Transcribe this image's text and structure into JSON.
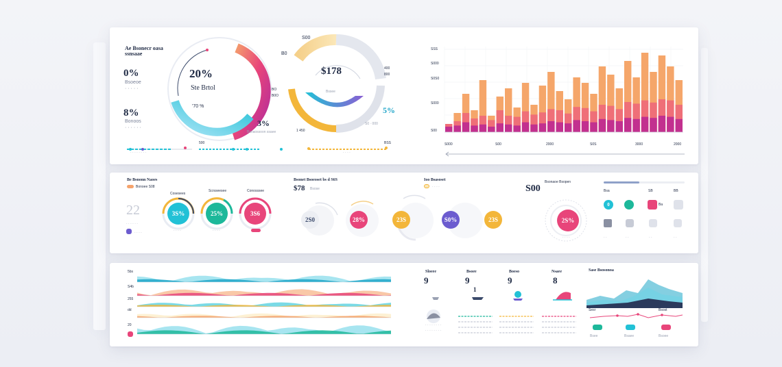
{
  "panel1": {
    "heading_line1": "Ae Bsonecr oasa",
    "heading_line2": "ssnsaae",
    "stat1_value": "0%",
    "stat1_caption": "Bsoeoe",
    "stat2_value": "8%",
    "stat2_caption": "Bonoos",
    "donut1_center_value": "20%",
    "donut1_center_label": "Ste Brtol",
    "donut1_sub": "'70 %",
    "donut1_callout_value": "3%",
    "donut1_callout_label": "Bsnaossoon ssaee",
    "donut2_top_label": "S00",
    "donut2_center_value": "$178",
    "donut2_center_label": "Bssee",
    "donut2_left_label": "B0",
    "donut2_side_right_1": "400",
    "donut2_side_right_2": "800",
    "donut2_side_left_1": "BO",
    "donut2_side_left_2": "B0O",
    "donut2_pct": "5%",
    "donut2_bottom": "1 450",
    "slider_value": "500",
    "slider2_value": "BSS",
    "bar_y_labels": [
      "SSS",
      "S000",
      "S0S0",
      "S000",
      "S00"
    ],
    "bar_x_labels": [
      "S000",
      "S00",
      "2000",
      "S0S",
      "3000",
      "2000"
    ],
    "bar_values_base": [
      10,
      12,
      18,
      12,
      14,
      10,
      16,
      14,
      12,
      18,
      14,
      16,
      20,
      18,
      16,
      22,
      20,
      18,
      24,
      22,
      20,
      26,
      24,
      28,
      26,
      30,
      28,
      24
    ],
    "bar_values_mid": [
      15,
      20,
      35,
      25,
      30,
      22,
      40,
      30,
      28,
      38,
      32,
      36,
      42,
      40,
      34,
      46,
      44,
      38,
      50,
      48,
      42,
      55,
      52,
      58,
      54,
      60,
      58,
      50
    ],
    "bar_values_top": [
      15,
      35,
      70,
      40,
      95,
      30,
      65,
      80,
      45,
      90,
      50,
      85,
      110,
      75,
      60,
      100,
      90,
      70,
      120,
      105,
      80,
      130,
      100,
      145,
      110,
      140,
      120,
      95
    ]
  },
  "panel2": {
    "heading": "Be Bsnonn Naoes",
    "subheading": "Bonoee S08",
    "big_number": "22",
    "gauge_labels": [
      "Cosesees",
      "Scrsseesee",
      "Conosssee"
    ],
    "gauge_values": [
      "3S%",
      "25%",
      "3S6"
    ],
    "mid_heading": "Bsonet Bsoeoset bs d S6S",
    "mid_value": "$78",
    "mid_value_sub": "Bsose",
    "mid_circle_values": [
      "2S0",
      "28%",
      "23S",
      "S0%",
      "23S"
    ],
    "right_heading": "Ioo Bsasoset",
    "right_value": "S00",
    "right_value_label": "Bsonaoe Bsopen",
    "right_circle_value": "2S%",
    "accent_colors": [
      "#22c1d6",
      "#1db89a",
      "#e8457a",
      "#f3b63a",
      "#6c5ccf"
    ]
  },
  "panel3": {
    "row_labels": [
      "5bs",
      "S4b",
      "255",
      "dd",
      "20"
    ],
    "kpis": [
      {
        "label": "Sloeee",
        "value": "9"
      },
      {
        "label": "Bsoee",
        "value": "9"
      },
      {
        "label": "Boeso",
        "value": "9"
      },
      {
        "label": "Nsaee",
        "value": "8"
      }
    ],
    "kpi_sub": "1",
    "right_heading": "Sase Bsosonoa",
    "right_labels": [
      "Sesr",
      "Bsost"
    ],
    "bottom_labels": [
      "Bsee",
      "Bsaee",
      "Bsoee"
    ]
  }
}
